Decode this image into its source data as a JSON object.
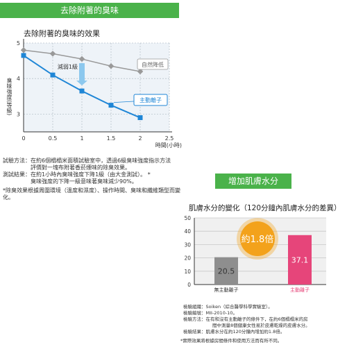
{
  "banners": {
    "deodor": "去除附著的臭味",
    "moisture": "增加肌膚水分"
  },
  "chart_data": [
    {
      "type": "line",
      "title": "去除附著的臭味的效果",
      "xlabel": "時間(小時)",
      "ylabel": "臭味強度(等級)",
      "xlim": [
        0,
        2.5
      ],
      "ylim": [
        2.5,
        5
      ],
      "x_ticks": [
        "0",
        "0.5",
        "1",
        "1.5",
        "2",
        "2.5"
      ],
      "y_ticks": [
        "3",
        "4",
        "5"
      ],
      "grid": true,
      "series": [
        {
          "name": "自然降低",
          "color": "#999999",
          "x": [
            0,
            0.5,
            1,
            1.5,
            2
          ],
          "y": [
            4.8,
            4.7,
            4.55,
            4.35,
            4.2
          ]
        },
        {
          "name": "主動離子",
          "color": "#1f86d6",
          "x": [
            0,
            0.5,
            1,
            1.5,
            2
          ],
          "y": [
            4.65,
            4.1,
            3.65,
            3.25,
            2.9
          ]
        }
      ],
      "annotations": {
        "arrow_label": "減弱1級"
      }
    },
    {
      "type": "bar",
      "title": "肌膚水分的變化（120分鐘內肌膚水分的差異）",
      "categories": [
        "無主動離子",
        "主動離子"
      ],
      "values": [
        20.5,
        37.1
      ],
      "colors": [
        "#8e8e8e",
        "#e6457a"
      ],
      "ylim": [
        0,
        50
      ],
      "y_ticks": [
        "0",
        "10",
        "20",
        "30",
        "40",
        "50"
      ],
      "grid": true,
      "callout": {
        "text": "約1.8倍",
        "color": "#f3a21b"
      }
    }
  ],
  "notes_left": {
    "method_line1": "試驗方法：在約6個榻榻米面積試驗室中，透過6級臭味強度指示方法",
    "method_line2": "評價對一塊布附著香菸煙味的除臭效果。",
    "result_line1": "測試結果：在約1小時內臭味強度下降1級（由大金測試）。 *",
    "result_line2": "臭味強度的下降一級意味著臭味減少90%。",
    "footnote_line1": "*除臭效果根據周圍環境（溫度和濕度）、操作時間、臭味和纖維類型而變",
    "footnote_line2": "化。"
  },
  "notes_right": {
    "line1": "檢驗組織：Soiken（綜合醫學科學實驗室）。",
    "line2": "檢驗編號：MII-2010-10。",
    "line3": "檢驗方法：在有和沒有主動離子的條件下，在約6個榻榻米的房",
    "line4": "間中測量8個健康女性易於皮膚乾燥的皮膚水分。",
    "line5": "檢驗結果：肌膚水分在約120分鐘內增加約1.8倍。",
    "line6": "*實際效果將根據房間條件和使用方法而有所不同。"
  }
}
